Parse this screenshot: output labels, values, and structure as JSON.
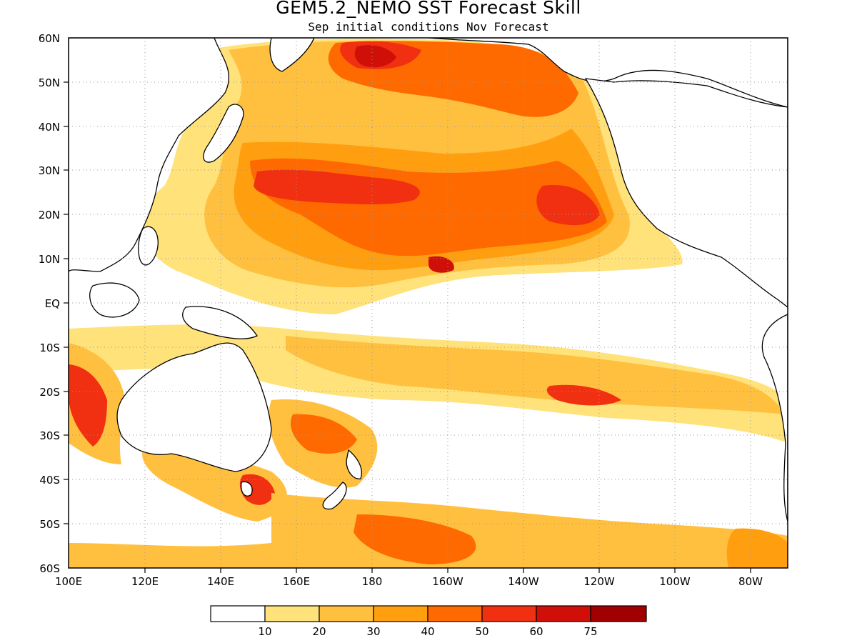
{
  "figure": {
    "title": "GEM5.2_NEMO SST Forecast Skill",
    "subtitle": "Sep initial conditions  Nov Forecast"
  },
  "map": {
    "lon_ticks": [
      "100E",
      "120E",
      "140E",
      "160E",
      "180",
      "160W",
      "140W",
      "120W",
      "100W",
      "80W"
    ],
    "lat_ticks": [
      "60N",
      "50N",
      "40N",
      "30N",
      "20N",
      "10N",
      "EQ",
      "10S",
      "20S",
      "30S",
      "40S",
      "50S",
      "60S"
    ],
    "lon_range": [
      100,
      290
    ],
    "lat_range": [
      -60,
      60
    ],
    "grid": "dotted"
  },
  "colorbar": {
    "colors": [
      "#ffffff",
      "#ffe27a",
      "#ffc040",
      "#ff9f10",
      "#ff6a00",
      "#f03010",
      "#d01008",
      "#a00000"
    ],
    "labels": [
      "10",
      "20",
      "30",
      "40",
      "50",
      "60",
      "75"
    ]
  },
  "legend_colors": {
    "land_outline": "#000000",
    "ocean_no_skill": "#ffffff"
  }
}
